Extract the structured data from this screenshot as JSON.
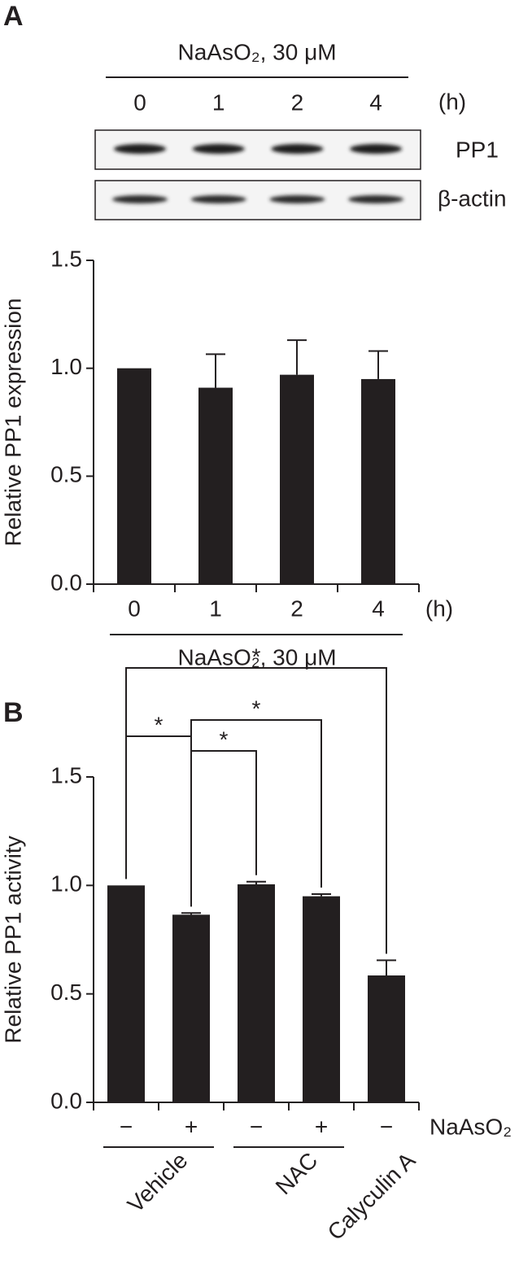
{
  "panel_labels": [
    "A",
    "B"
  ],
  "blot": {
    "treatment": "NaAsO₂, 30 μM",
    "lanes": [
      "0",
      "1",
      "2",
      "4"
    ],
    "unit": "(h)",
    "rows": [
      "PP1",
      "β-actin"
    ]
  },
  "chart_data": [
    {
      "type": "bar",
      "y_label": "Relative PP1 expression",
      "x_unit": "(h)",
      "x_group_label": "NaAsO₂, 30 μM",
      "categories": [
        "0",
        "1",
        "2",
        "4"
      ],
      "values": [
        1.0,
        0.91,
        0.97,
        0.95
      ],
      "errors": [
        0,
        0.155,
        0.16,
        0.13
      ],
      "color": "#231f20",
      "ylim": [
        0,
        1.5
      ],
      "yticks": [
        {
          "value": 0,
          "label": "0.0"
        },
        0.5,
        {
          "value": 1,
          "label": "1.0"
        },
        1.5
      ]
    },
    {
      "type": "bar",
      "y_label": "Relative PP1 activity",
      "row_label": "NaAsO₂",
      "categories": [
        "−",
        "+",
        "−",
        "+",
        "−"
      ],
      "values": [
        1.0,
        0.865,
        1.005,
        0.95,
        0.585
      ],
      "errors": [
        0,
        0.008,
        0.012,
        0.01,
        0.07
      ],
      "groups": [
        {
          "label": "Vehicle",
          "from": 0,
          "to": 1
        },
        {
          "label": "NAC",
          "from": 2,
          "to": 3
        },
        {
          "label": "Calyculin A",
          "from": 4,
          "to": 4
        }
      ],
      "annotations": [
        {
          "from": 0,
          "to": 4,
          "label": "*"
        },
        {
          "from": 1,
          "to": 3,
          "label": "*"
        },
        {
          "from": 0,
          "to": 1,
          "label": "*"
        },
        {
          "from": 1,
          "to": 2,
          "label": "*"
        }
      ],
      "color": "#231f20",
      "ylim": [
        0,
        1.5
      ],
      "yticks": [
        {
          "value": 0,
          "label": "0.0"
        },
        0.5,
        {
          "value": 1,
          "label": "1.0"
        },
        1.5
      ]
    }
  ]
}
